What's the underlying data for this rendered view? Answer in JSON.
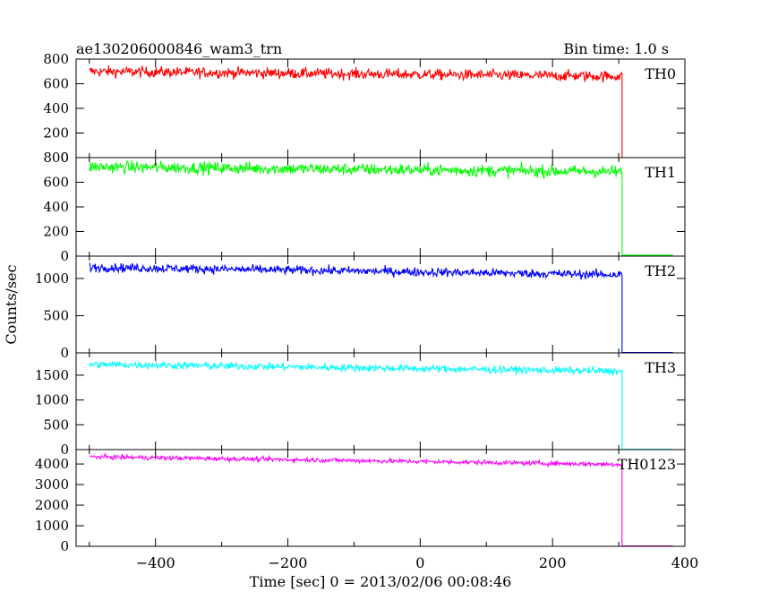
{
  "header": {
    "title": "ae130206000846_wam3_trn",
    "bin_time": "Bin time: 1.0 s"
  },
  "chart_data": {
    "type": "line",
    "title": "ae130206000846_wam3_trn",
    "subtitle": "Bin time: 1.0 s",
    "xlabel": "Time [sec] 0 = 2013/02/06 00:08:46",
    "ylabel": "Counts/sec",
    "xlim": [
      -520,
      400
    ],
    "x_ticks": [
      -400,
      -200,
      0,
      200,
      400
    ],
    "x_tick_labels": [
      "−400",
      "−200",
      "0",
      "200",
      "400"
    ],
    "x_step": 1.0,
    "grid": false,
    "panels": [
      {
        "name": "TH0",
        "color": "#ff0000",
        "ylim": [
          0,
          800
        ],
        "y_ticks": [
          0,
          200,
          400,
          600,
          800
        ],
        "series": {
          "x_start": -500,
          "x_drop": 305,
          "x_end": 382,
          "values_start": 700,
          "values_end": 660,
          "noise": 22,
          "value_after": 0
        }
      },
      {
        "name": "TH1",
        "color": "#00ff00",
        "ylim": [
          0,
          800
        ],
        "y_ticks": [
          0,
          200,
          400,
          600,
          800
        ],
        "series": {
          "x_start": -500,
          "x_drop": 305,
          "x_end": 382,
          "values_start": 725,
          "values_end": 685,
          "noise": 25,
          "value_after": 8
        }
      },
      {
        "name": "TH2",
        "color": "#0000ff",
        "ylim": [
          0,
          1300
        ],
        "y_ticks": [
          0,
          500,
          1000
        ],
        "series": {
          "x_start": -500,
          "x_drop": 305,
          "x_end": 382,
          "values_start": 1150,
          "values_end": 1050,
          "noise": 30,
          "value_after": 5
        }
      },
      {
        "name": "TH3",
        "color": "#00ffff",
        "ylim": [
          0,
          1950
        ],
        "y_ticks": [
          0,
          500,
          1000,
          1500
        ],
        "series": {
          "x_start": -500,
          "x_drop": 305,
          "x_end": 382,
          "values_start": 1720,
          "values_end": 1580,
          "noise": 38,
          "value_after": 5
        }
      },
      {
        "name": "TH0123",
        "color": "#ff00ff",
        "ylim": [
          0,
          4700
        ],
        "y_ticks": [
          0,
          1000,
          2000,
          3000,
          4000
        ],
        "series": {
          "x_start": -500,
          "x_drop": 305,
          "x_end": 382,
          "values_start": 4350,
          "values_end": 3980,
          "noise": 55,
          "value_after": 20
        }
      }
    ]
  }
}
